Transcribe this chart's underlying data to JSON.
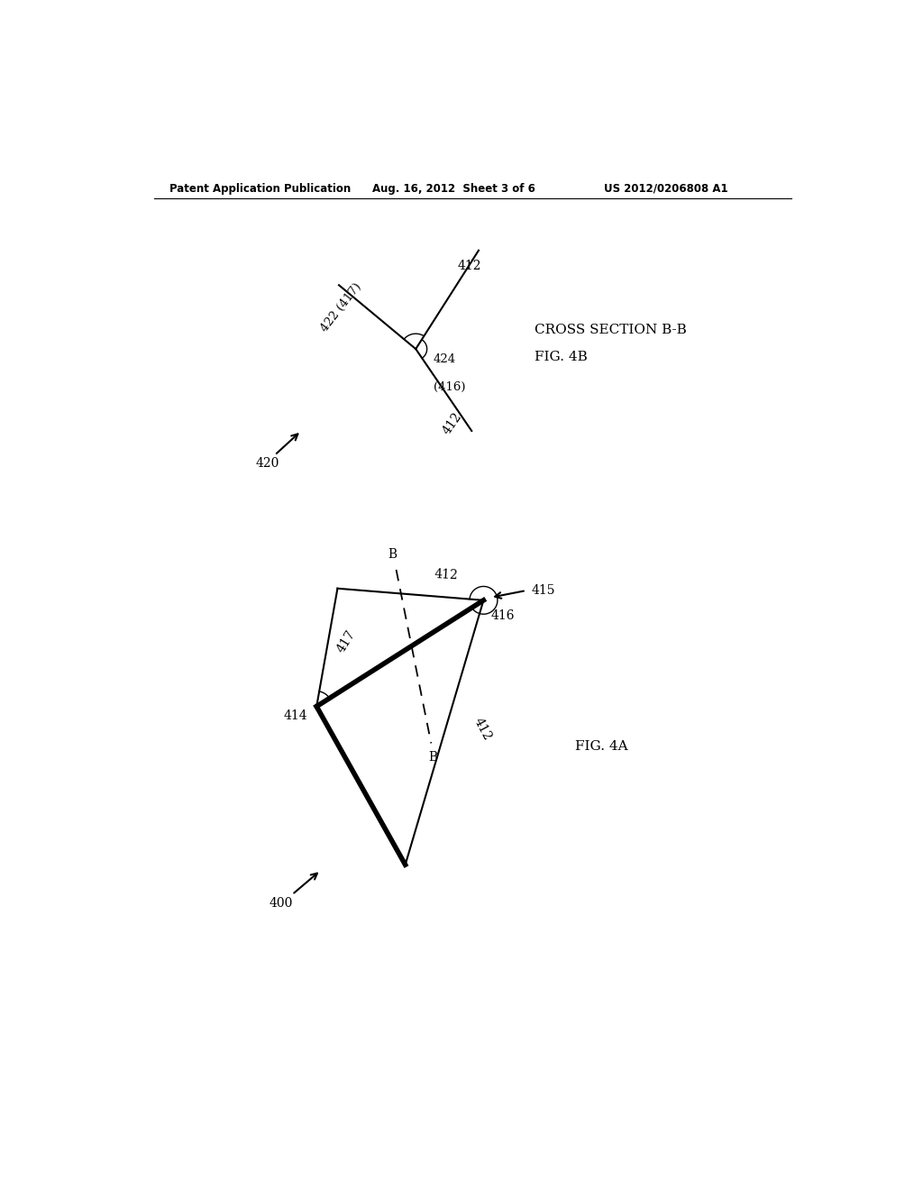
{
  "header_left": "Patent Application Publication",
  "header_mid": "Aug. 16, 2012  Sheet 3 of 6",
  "header_right": "US 2012/0206808 A1",
  "bg_color": "#ffffff",
  "fig_label_4A": "FIG. 4A",
  "fig_label_4B": "FIG. 4B",
  "cross_section_label": "CROSS SECTION B-B",
  "label_400": "400",
  "label_412": "412",
  "label_414": "414",
  "label_415": "415",
  "label_416": "416",
  "label_417": "417",
  "label_420": "420",
  "label_422": "422 (417)",
  "label_424_line1": "424",
  "label_424_line2": "(416)"
}
